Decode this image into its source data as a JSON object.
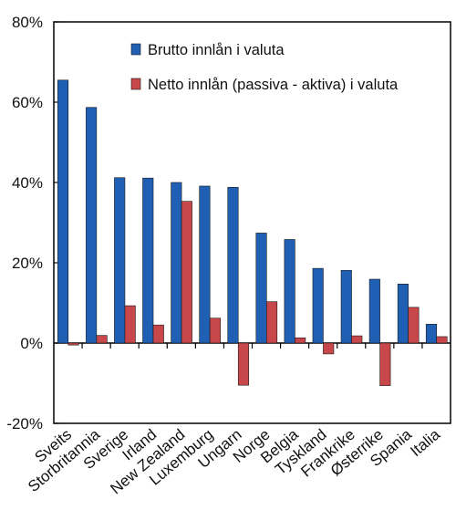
{
  "chart_data": {
    "type": "bar",
    "categories": [
      "Sveits",
      "Storbritannia",
      "Sverige",
      "Irland",
      "New Zealand",
      "Luxemburg",
      "Ungarn",
      "Norge",
      "Belgia",
      "Tyskland",
      "Frankrike",
      "Østerrike",
      "Spania",
      "Italia"
    ],
    "series": [
      {
        "name": "Brutto innlån i valuta",
        "color": "#1f5fb4",
        "values": [
          65.5,
          58.7,
          41.2,
          41.1,
          40.0,
          39.1,
          38.8,
          27.4,
          25.8,
          18.6,
          18.1,
          15.9,
          14.7,
          4.7
        ]
      },
      {
        "name": "Netto innlån (passiva - aktiva) i valuta",
        "color": "#c8474a",
        "values": [
          -0.5,
          1.9,
          9.3,
          4.5,
          35.3,
          6.2,
          -10.5,
          10.3,
          1.3,
          -2.7,
          1.8,
          -10.6,
          8.9,
          1.6
        ]
      }
    ],
    "ylim": [
      -20,
      80
    ],
    "yticks": [
      -20,
      0,
      20,
      40,
      60,
      80
    ],
    "ytick_labels": [
      "-20%",
      "0%",
      "20%",
      "40%",
      "60%",
      "80%"
    ],
    "legend_position": "top-right",
    "grid": false
  }
}
